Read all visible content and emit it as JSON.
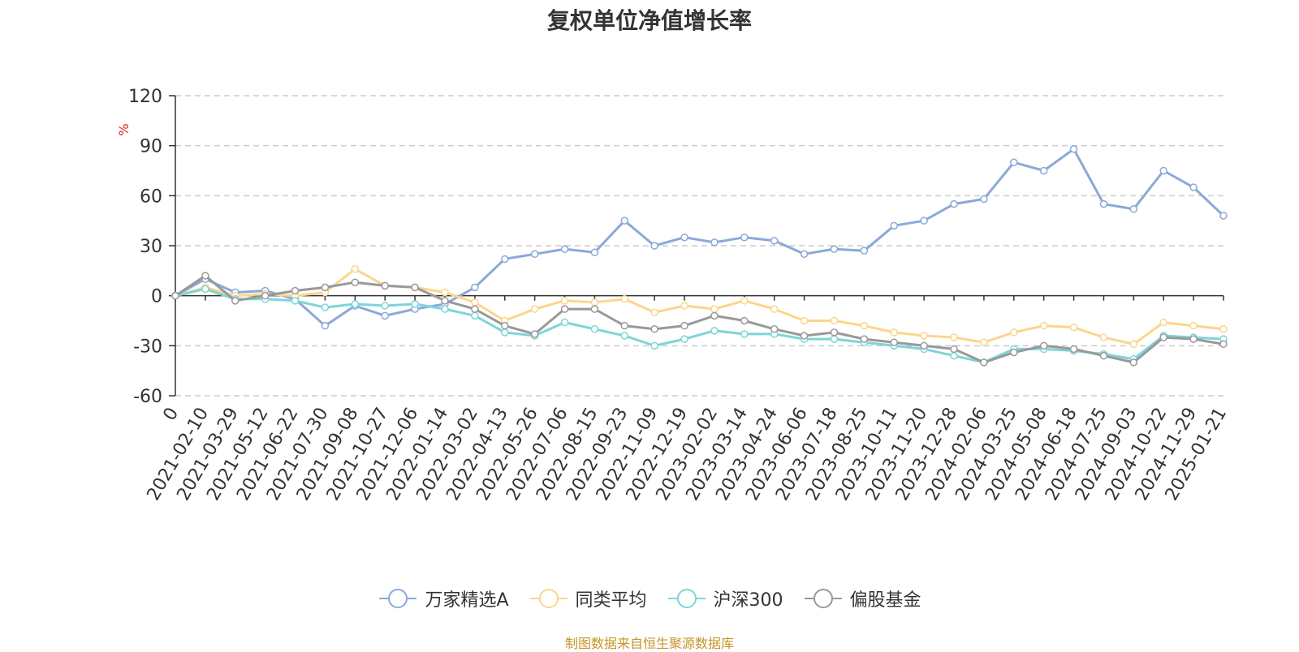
{
  "chart_data": {
    "type": "line",
    "title": "复权单位净值增长率",
    "ylabel": "%",
    "xlabel": "",
    "ylim": [
      -60,
      120
    ],
    "yticks": [
      120,
      90,
      60,
      30,
      0,
      -30,
      -60
    ],
    "ytick_labels": [
      "120",
      "90",
      "60",
      "30",
      "0",
      "-30",
      "-60"
    ],
    "categories": [
      "0",
      "2021-02-10",
      "2021-03-29",
      "2021-05-12",
      "2021-06-22",
      "2021-07-30",
      "2021-09-08",
      "2021-10-27",
      "2021-12-06",
      "2022-01-14",
      "2022-03-02",
      "2022-04-13",
      "2022-05-26",
      "2022-07-06",
      "2022-08-15",
      "2022-09-23",
      "2022-11-09",
      "2022-12-19",
      "2023-02-02",
      "2023-03-14",
      "2023-04-24",
      "2023-06-06",
      "2023-07-18",
      "2023-08-25",
      "2023-10-11",
      "2023-11-20",
      "2023-12-28",
      "2024-02-06",
      "2024-03-25",
      "2024-05-08",
      "2024-06-18",
      "2024-07-25",
      "2024-09-03",
      "2024-10-22",
      "2024-11-29",
      "2025-01-21"
    ],
    "series": [
      {
        "name": "万家精选A",
        "color": "#8ba8d8",
        "values": [
          0,
          10,
          2,
          3,
          -2,
          -18,
          -6,
          -12,
          -8,
          -5,
          5,
          22,
          25,
          28,
          26,
          45,
          30,
          35,
          32,
          35,
          33,
          25,
          28,
          27,
          42,
          45,
          55,
          58,
          80,
          75,
          88,
          55,
          52,
          75,
          65,
          48
        ]
      },
      {
        "name": "同类平均",
        "color": "#fcd58c",
        "values": [
          0,
          5,
          0,
          1,
          0,
          2,
          16,
          6,
          5,
          2,
          -4,
          -15,
          -8,
          -3,
          -4,
          -2,
          -10,
          -6,
          -8,
          -3,
          -8,
          -15,
          -15,
          -18,
          -22,
          -24,
          -25,
          -28,
          -22,
          -18,
          -19,
          -25,
          -29,
          -16,
          -18,
          -20
        ]
      },
      {
        "name": "沪深300",
        "color": "#7dd5d8",
        "values": [
          0,
          4,
          -2,
          -2,
          -3,
          -7,
          -5,
          -6,
          -5,
          -8,
          -12,
          -22,
          -24,
          -16,
          -20,
          -24,
          -30,
          -26,
          -21,
          -23,
          -23,
          -26,
          -26,
          -28,
          -30,
          -32,
          -36,
          -40,
          -32,
          -32,
          -33,
          -35,
          -38,
          -24,
          -25,
          -26
        ]
      },
      {
        "name": "偏股基金",
        "color": "#999999",
        "values": [
          0,
          12,
          -3,
          0,
          3,
          5,
          8,
          6,
          5,
          -3,
          -8,
          -18,
          -23,
          -8,
          -8,
          -18,
          -20,
          -18,
          -12,
          -15,
          -20,
          -24,
          -22,
          -26,
          -28,
          -30,
          -32,
          -40,
          -34,
          -30,
          -32,
          -36,
          -40,
          -25,
          -26,
          -29
        ]
      }
    ],
    "legend_position": "bottom-center",
    "grid": "horizontal-dashed",
    "source_note": "制图数据来自恒生聚源数据库"
  }
}
